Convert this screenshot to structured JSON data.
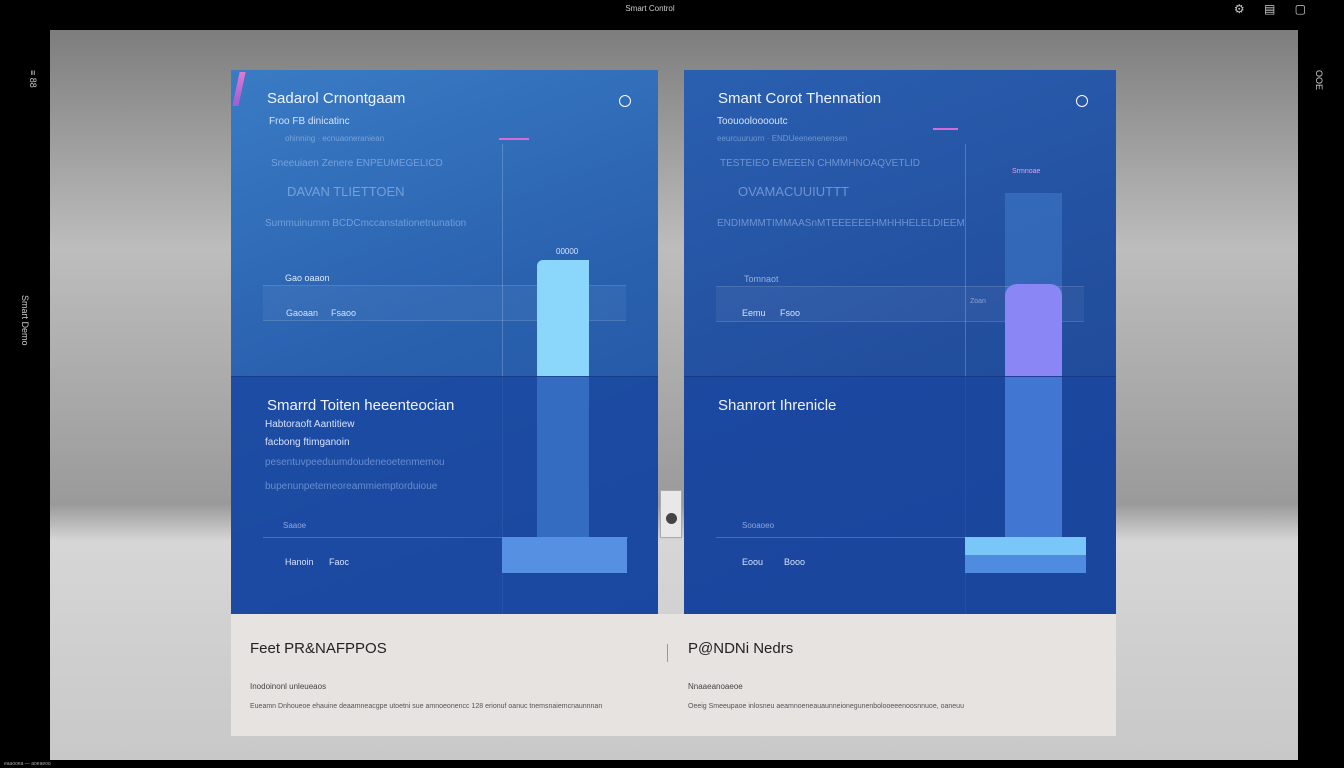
{
  "window": {
    "title": "Smart Control",
    "top_icons": "⚙ ▤ ▢"
  },
  "side": {
    "left_top": "≡ 88",
    "left_mid": "Smart Demo",
    "right_top": "OOE"
  },
  "cards": [
    {
      "title": "Sadarol Crnontgaam",
      "subtitle": "Froo FB dinicatinc",
      "line1": "ohinning · ecnuaoneraniean",
      "line2": "Sneeuiaen Zenere ENPEUMEGELICD",
      "line3": "DAVAN TLIETTOEN",
      "line4": "Summuinumm BCDCmccanstationetnunation",
      "bar_label": "00000",
      "row1_label": "Gao oaaon",
      "row2_a": "Gaoaan",
      "row2_b": "Fsaoo",
      "lower_title": "Smarrd Toiten   heeenteocian",
      "lower_sub1": "Habtoraoft Aantitiew",
      "lower_sub2": "facbong ftimganoin",
      "lower_faint1": "pesentuvpeeduumdoudeneoetenmemou",
      "lower_faint2": "bupenunpetemeoreammiemptorduioue",
      "lower_row1": "Saaoe",
      "lower_row2_a": "Hanoin",
      "lower_row2_b": "Faoc",
      "accent": "#8fd8ff"
    },
    {
      "title": "Smant Corot Thennation",
      "subtitle": "Toouoolooooutc",
      "line1": "eeurcuuruorn · ENDUeenenenensen",
      "line2": "TESTEIEO EMEEEN CHMMHNOAQVETLID",
      "line3": "OVAMACUUIUTTT",
      "line4": "ENDIMMMTIMMAASnMTEEEEEEHMHHHELELDIEEM",
      "bar_label": "Srmnoae",
      "row1_label": "Tomnaot",
      "row1_value": "Zoan",
      "row2_a": "Eemu",
      "row2_b": "Fsoo",
      "lower_title": "Shanrort Ihrenicle",
      "lower_row1": "Sooaoeo",
      "lower_row2_a": "Eoou",
      "lower_row2_b": "Booo",
      "accent": "#8a86f6"
    }
  ],
  "footer": [
    {
      "title": "Feet PR&NAFPPOS",
      "p1": "Inodoinonl unleueaos",
      "p2": "Eueamn Dnhoueoe ehauine deaamneacgpe utoetni sue amnoeonencc 128 erionuf oanuc tnemsnaiemcnaunnnan"
    },
    {
      "title": "P@NDNi Nedrs",
      "p1": "Nnaaeanoaeoe",
      "p2": "Oeeig Smeeupaoe inlosneu aeamnoeneauaunneionegunenbolooeeenoosnnuoe, oaneuu"
    }
  ],
  "bottom": "eaaooea — aoeaeoo"
}
